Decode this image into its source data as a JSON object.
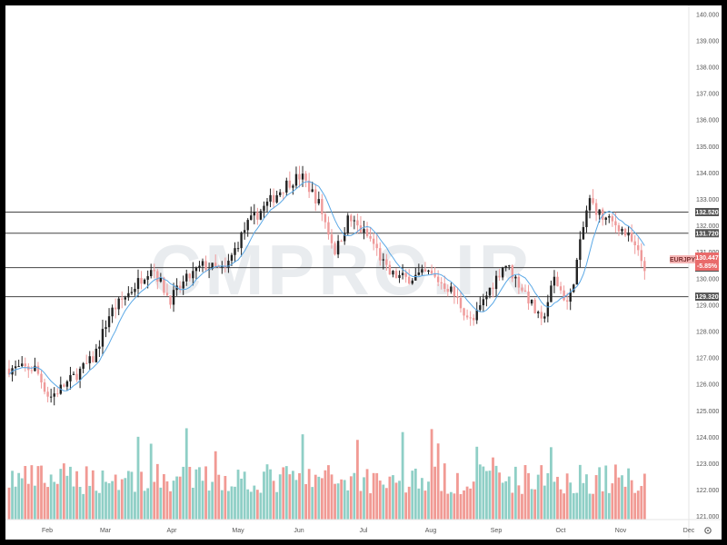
{
  "watermark": "CMPRO.IR",
  "symbol_label": "EURJPY",
  "price_label": "130.447",
  "change_label": "-5.85%",
  "settings_icon": "gear-icon",
  "colors": {
    "up_candle": "#222222",
    "down_candle": "#ef9a9a",
    "volume_up": "#8fcfc6",
    "volume_down": "#f19a94",
    "ma_line": "#5aa8e6",
    "hline": "#444444",
    "tag_bg": "#555555",
    "symbol_tag_bg": "#f5b5b5",
    "price_tag_bg": "#e96b6b"
  },
  "chart_data": {
    "type": "candlestick",
    "y_ticks": [
      "121.000",
      "122.000",
      "123.000",
      "124.000",
      "125.000",
      "126.000",
      "127.000",
      "128.000",
      "129.000",
      "130.000",
      "131.000",
      "132.000",
      "133.000",
      "134.000",
      "135.000",
      "136.000",
      "137.000",
      "138.000",
      "139.000",
      "140.000"
    ],
    "x_ticks": [
      "Feb",
      "Mar",
      "Apr",
      "May",
      "Jun",
      "Jul",
      "Aug",
      "Sep",
      "Oct",
      "Nov",
      "Dec"
    ],
    "ylim": [
      120.5,
      140.2
    ],
    "horizontal_levels": [
      {
        "value": 132.52,
        "label": "132.520"
      },
      {
        "value": 131.72,
        "label": "131.720"
      },
      {
        "value": 130.42,
        "label": "130.420"
      },
      {
        "value": 129.32,
        "label": "129.320"
      }
    ],
    "last_price": 130.447,
    "anchors": [
      {
        "date": "Jan 25",
        "close": 126.6
      },
      {
        "date": "Feb 2",
        "close": 125.5
      },
      {
        "date": "Feb 12",
        "close": 126.1
      },
      {
        "date": "Feb 25",
        "close": 127.0
      },
      {
        "date": "Mar 3",
        "close": 128.7
      },
      {
        "date": "Mar 12",
        "close": 129.5
      },
      {
        "date": "Mar 22",
        "close": 130.5
      },
      {
        "date": "Mar 30",
        "close": 129.2
      },
      {
        "date": "Apr 8",
        "close": 130.0
      },
      {
        "date": "Apr 15",
        "close": 130.5
      },
      {
        "date": "Apr 25",
        "close": 130.3
      },
      {
        "date": "May 5",
        "close": 132.0
      },
      {
        "date": "May 15",
        "close": 132.8
      },
      {
        "date": "May 25",
        "close": 133.6
      },
      {
        "date": "Jun 2",
        "close": 133.9
      },
      {
        "date": "Jun 10",
        "close": 132.9
      },
      {
        "date": "Jun 18",
        "close": 131.0
      },
      {
        "date": "Jun 24",
        "close": 132.3
      },
      {
        "date": "Jul 5",
        "close": 131.4
      },
      {
        "date": "Jul 12",
        "close": 130.2
      },
      {
        "date": "Jul 20",
        "close": 130.0
      },
      {
        "date": "Jul 30",
        "close": 130.2
      },
      {
        "date": "Aug 10",
        "close": 129.6
      },
      {
        "date": "Aug 20",
        "close": 128.3
      },
      {
        "date": "Aug 28",
        "close": 129.6
      },
      {
        "date": "Sep 5",
        "close": 130.6
      },
      {
        "date": "Sep 15",
        "close": 129.4
      },
      {
        "date": "Sep 22",
        "close": 128.3
      },
      {
        "date": "Sep 28",
        "close": 130.0
      },
      {
        "date": "Oct 5",
        "close": 129.0
      },
      {
        "date": "Oct 10",
        "close": 131.0
      },
      {
        "date": "Oct 15",
        "close": 133.0
      },
      {
        "date": "Oct 22",
        "close": 132.3
      },
      {
        "date": "Oct 30",
        "close": 132.0
      },
      {
        "date": "Nov 5",
        "close": 131.5
      },
      {
        "date": "Nov 12",
        "close": 130.4
      }
    ]
  }
}
